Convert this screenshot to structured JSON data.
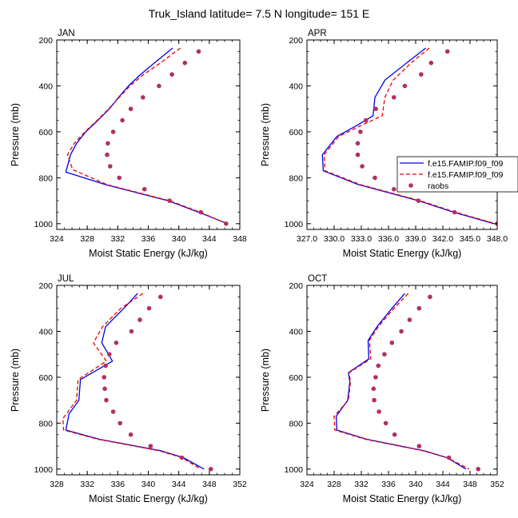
{
  "figure_title": "Truk_Island  latitude= 7.5 N longitude= 151 E",
  "colors": {
    "model1": "#0000ee",
    "model2": "#ee0000",
    "raobs": "#b03060"
  },
  "legend": {
    "items": [
      {
        "label": "f.e15.FAMIP.f09_f09",
        "style": "solid-blue"
      },
      {
        "label": "f.e15.FAMIP.f09_f09",
        "style": "dashed-red"
      },
      {
        "label": "raobs",
        "style": "dot"
      }
    ]
  },
  "chart_data": [
    {
      "type": "line",
      "title": "JAN",
      "xlabel": "Moist Static Energy (kJ/kg)",
      "ylabel": "Pressure (mb)",
      "xlim": [
        324,
        348
      ],
      "ylim": [
        200,
        1025
      ],
      "xticks": [
        324,
        328,
        332,
        336,
        340,
        344,
        348
      ],
      "xtick_labels": [
        "324",
        "328",
        "332",
        "336",
        "340",
        "344",
        "348"
      ],
      "yticks": [
        200,
        400,
        600,
        800,
        1000
      ],
      "ytick_labels": [
        "200",
        "400",
        "600",
        "800",
        "1000"
      ],
      "series": [
        {
          "name": "f.e15.FAMIP.f09_f09",
          "style": "solid-blue",
          "pressure": [
            235,
            300,
            350,
            400,
            450,
            500,
            550,
            600,
            650,
            700,
            775,
            830,
            900,
            950,
            1000
          ],
          "values": [
            339.2,
            336.8,
            335.0,
            333.4,
            332.1,
            330.9,
            329.4,
            327.8,
            326.6,
            325.8,
            325.2,
            330.4,
            338.6,
            342.6,
            346.4
          ]
        },
        {
          "name": "f.e15.FAMIP.f09_f09",
          "style": "dashed-red",
          "pressure": [
            235,
            300,
            350,
            400,
            450,
            500,
            550,
            600,
            650,
            700,
            765,
            830,
            900,
            950,
            1000
          ],
          "values": [
            340.2,
            337.6,
            335.4,
            333.6,
            332.2,
            330.8,
            329.3,
            327.7,
            326.3,
            325.4,
            326.1,
            330.6,
            338.8,
            342.8,
            346.3
          ]
        },
        {
          "name": "raobs",
          "style": "dot",
          "pressure": [
            250,
            300,
            350,
            400,
            450,
            500,
            550,
            600,
            650,
            700,
            750,
            800,
            850,
            900,
            950,
            1000
          ],
          "values": [
            342.6,
            340.8,
            339.1,
            337.4,
            335.3,
            333.7,
            332.6,
            331.4,
            330.7,
            330.6,
            331.0,
            332.2,
            335.5,
            338.8,
            342.9,
            346.2
          ]
        }
      ]
    },
    {
      "type": "line",
      "title": "APR",
      "xlabel": "Moist Static Energy (kJ/kg)",
      "ylabel": "Pressure (mb)",
      "xlim": [
        327,
        348
      ],
      "ylim": [
        200,
        1025
      ],
      "xticks": [
        327,
        330,
        333,
        336,
        339,
        342,
        345,
        348
      ],
      "xtick_labels": [
        "327.0",
        "330.0",
        "333.0",
        "336.0",
        "339.0",
        "342.0",
        "345.0",
        "348.0"
      ],
      "yticks": [
        200,
        400,
        600,
        800,
        1000
      ],
      "ytick_labels": [
        "200",
        "400",
        "600",
        "800",
        "1000"
      ],
      "series": [
        {
          "name": "f.e15.FAMIP.f09_f09",
          "style": "solid-blue",
          "pressure": [
            235,
            300,
            375,
            450,
            530,
            570,
            620,
            700,
            770,
            830,
            900,
            950,
            1000
          ],
          "values": [
            340.1,
            338.0,
            335.6,
            334.5,
            334.3,
            332.6,
            330.3,
            328.7,
            328.8,
            332.7,
            339.3,
            343.2,
            347.6
          ]
        },
        {
          "name": "f.e15.FAMIP.f09_f09",
          "style": "dashed-red",
          "pressure": [
            235,
            300,
            375,
            450,
            530,
            570,
            620,
            700,
            770,
            830,
            900,
            950,
            1000
          ],
          "values": [
            340.5,
            338.5,
            336.5,
            335.6,
            335.3,
            333.1,
            330.5,
            328.9,
            329.0,
            332.9,
            339.5,
            343.4,
            347.8
          ]
        },
        {
          "name": "raobs",
          "style": "dot",
          "pressure": [
            250,
            300,
            350,
            400,
            450,
            500,
            550,
            600,
            650,
            700,
            750,
            800,
            850,
            900,
            950,
            1000
          ],
          "values": [
            342.5,
            340.7,
            339.6,
            337.8,
            336.6,
            334.6,
            333.5,
            332.9,
            332.6,
            332.6,
            333.1,
            334.5,
            336.6,
            339.3,
            343.3,
            348.0
          ]
        }
      ]
    },
    {
      "type": "line",
      "title": "JUL",
      "xlabel": "Moist Static Energy (kJ/kg)",
      "ylabel": "Pressure (mb)",
      "xlim": [
        328,
        352
      ],
      "ylim": [
        200,
        1025
      ],
      "xticks": [
        328,
        332,
        336,
        340,
        344,
        348,
        352
      ],
      "xtick_labels": [
        "328",
        "332",
        "336",
        "340",
        "344",
        "348",
        "352"
      ],
      "yticks": [
        200,
        400,
        600,
        800,
        1000
      ],
      "ytick_labels": [
        "200",
        "400",
        "600",
        "800",
        "1000"
      ],
      "series": [
        {
          "name": "f.e15.FAMIP.f09_f09",
          "style": "solid-blue",
          "pressure": [
            235,
            300,
            380,
            450,
            530,
            610,
            700,
            760,
            830,
            870,
            920,
            950,
            1000
          ],
          "values": [
            338.6,
            336.8,
            334.4,
            333.9,
            335.3,
            331.1,
            330.9,
            329.6,
            329.2,
            333.6,
            341.6,
            344.6,
            347.3
          ]
        },
        {
          "name": "f.e15.FAMIP.f09_f09",
          "style": "dashed-red",
          "pressure": [
            235,
            300,
            380,
            450,
            530,
            610,
            700,
            780,
            830,
            870,
            920,
            950,
            1000
          ],
          "values": [
            339.3,
            336.4,
            334.0,
            332.8,
            334.5,
            330.8,
            330.6,
            328.8,
            328.9,
            333.4,
            341.4,
            344.4,
            346.9
          ]
        },
        {
          "name": "raobs",
          "style": "dot",
          "pressure": [
            250,
            300,
            350,
            400,
            450,
            500,
            550,
            600,
            650,
            700,
            750,
            800,
            850,
            900,
            950,
            1000
          ],
          "values": [
            341.6,
            340.1,
            338.9,
            337.8,
            335.8,
            334.9,
            334.4,
            334.2,
            334.3,
            334.5,
            335.4,
            336.3,
            337.7,
            340.3,
            344.4,
            348.2
          ]
        }
      ]
    },
    {
      "type": "line",
      "title": "OCT",
      "xlabel": "Moist Static Energy (kJ/kg)",
      "ylabel": "Pressure (mb)",
      "xlim": [
        324,
        352
      ],
      "ylim": [
        200,
        1025
      ],
      "xticks": [
        324,
        328,
        332,
        336,
        340,
        344,
        348,
        352
      ],
      "xtick_labels": [
        "324",
        "328",
        "332",
        "336",
        "340",
        "344",
        "348",
        "352"
      ],
      "yticks": [
        200,
        400,
        600,
        800,
        1000
      ],
      "ytick_labels": [
        "200",
        "400",
        "600",
        "800",
        "1000"
      ],
      "series": [
        {
          "name": "f.e15.FAMIP.f09_f09",
          "style": "solid-blue",
          "pressure": [
            235,
            300,
            380,
            440,
            520,
            580,
            620,
            700,
            770,
            830,
            870,
            920,
            950,
            1000
          ],
          "values": [
            338.4,
            336.5,
            334.3,
            333.0,
            333.1,
            330.1,
            330.3,
            330.0,
            328.3,
            328.4,
            332.8,
            341.2,
            344.6,
            347.4
          ]
        },
        {
          "name": "f.e15.FAMIP.f09_f09",
          "style": "dashed-red",
          "pressure": [
            235,
            300,
            380,
            440,
            520,
            580,
            620,
            700,
            770,
            830,
            870,
            920,
            950,
            1000
          ],
          "values": [
            338.9,
            336.8,
            334.5,
            333.2,
            333.4,
            330.2,
            330.4,
            330.1,
            328.0,
            328.1,
            332.6,
            341.0,
            344.6,
            347.9
          ]
        },
        {
          "name": "raobs",
          "style": "dot",
          "pressure": [
            250,
            300,
            350,
            400,
            450,
            500,
            550,
            600,
            650,
            700,
            750,
            800,
            850,
            900,
            950,
            1000
          ],
          "values": [
            342.1,
            340.5,
            339.1,
            337.9,
            336.5,
            335.4,
            334.5,
            334.1,
            333.8,
            333.9,
            334.6,
            335.6,
            336.9,
            340.5,
            344.9,
            349.2
          ]
        }
      ]
    }
  ]
}
